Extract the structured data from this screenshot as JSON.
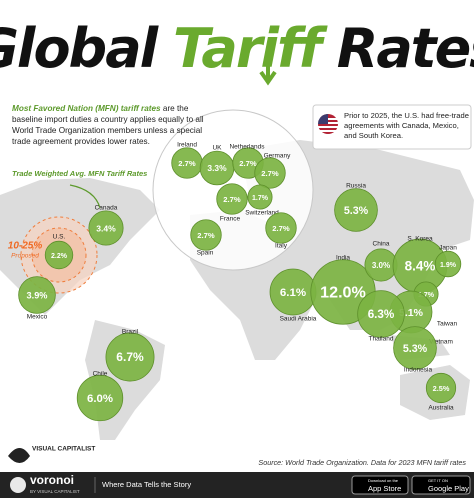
{
  "chart_data": {
    "type": "bubble-map",
    "title_start": "Global",
    "title_highlight": "Tariff",
    "title_end": "Rates",
    "subtitle_lead": "Most Favored Nation (MFN) tariff rates",
    "subtitle_rest": "are the baseline import duties a country applies equally to all World Trade Organization members unless a special trade agreement provides lower rates.",
    "note": "Prior to 2025, the U.S. had free-trade agreements with Canada, Mexico, and South Korea.",
    "legend": "Trade Weighted Avg. MFN Tariff Rates",
    "annotation": "10-25%",
    "annotation_sub": "Proposed",
    "color": "#7cb342",
    "categories": [
      "Ireland",
      "UK",
      "Netherlands",
      "Germany",
      "France",
      "Switzerland",
      "Spain",
      "Italy",
      "Russia",
      "Canada",
      "U.S.",
      "Mexico",
      "Brazil",
      "Chile",
      "Saudi Arabia",
      "India",
      "China",
      "S. Korea",
      "Japan",
      "Taiwan",
      "Vietnam",
      "Thailand",
      "Indonesia",
      "Australia"
    ],
    "values": [
      2.7,
      3.3,
      2.7,
      2.7,
      2.7,
      1.7,
      2.7,
      2.7,
      5.3,
      3.4,
      2.2,
      3.9,
      6.7,
      6.0,
      6.1,
      12.0,
      3.0,
      8.4,
      1.9,
      1.7,
      5.1,
      6.3,
      5.3,
      2.5
    ],
    "value_labels": [
      "2.7%",
      "3.3%",
      "2.7%",
      "2.7%",
      "2.7%",
      "1.7%",
      "2.7%",
      "2.7%",
      "5.3%",
      "3.4%",
      "2.2%",
      "3.9%",
      "6.7%",
      "6.0%",
      "6.1%",
      "12.0%",
      "3.0%",
      "8.4%",
      "1.9%",
      "1.7%",
      "5.1%",
      "6.3%",
      "5.3%",
      "2.5%"
    ],
    "source": "Source: World Trade Organization. Data for 2023 MFN tariff rates",
    "brand_top": "VISUAL CAPITALIST",
    "brand": "voronoi",
    "brand_by": "BY VISUAL CAPITALIST",
    "tagline": "Where Data Tells the Story",
    "appstore_small": "Download on the",
    "appstore": "App Store",
    "googleplay_small": "GET IT ON",
    "googleplay": "Google Play"
  }
}
